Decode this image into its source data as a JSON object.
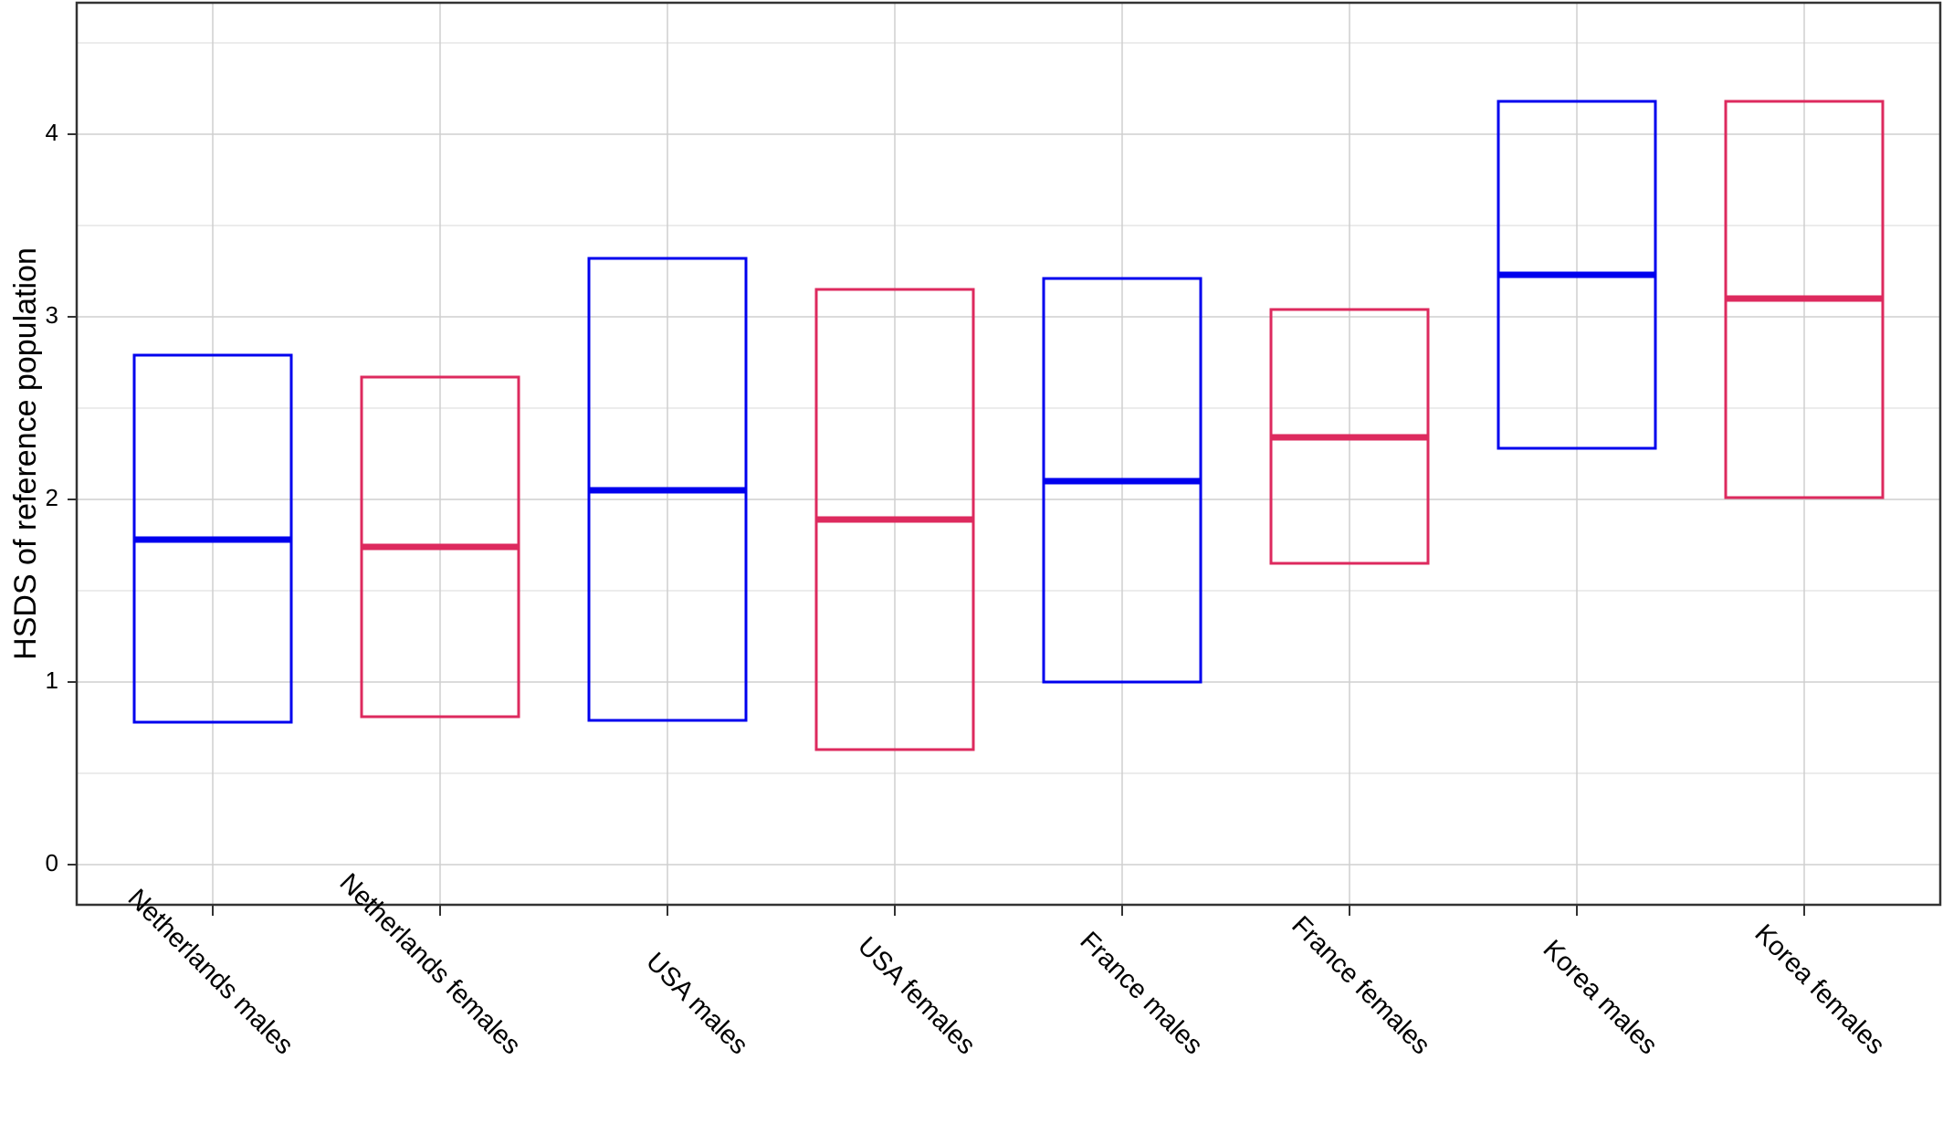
{
  "chart_data": {
    "type": "box",
    "title": "",
    "xlabel": "",
    "ylabel": "HSDS of reference population",
    "ylim": [
      -0.2,
      4.7
    ],
    "yticks": [
      0,
      1,
      2,
      3,
      4
    ],
    "grid": true,
    "legend": "none",
    "categories": [
      "Netherlands males",
      "Netherlands females",
      "USA males",
      "USA females",
      "France males",
      "France females",
      "Korea males",
      "Korea females"
    ],
    "colors": [
      "#0000ee",
      "#dd2a5e",
      "#0000ee",
      "#dd2a5e",
      "#0000ee",
      "#dd2a5e",
      "#0000ee",
      "#dd2a5e"
    ],
    "boxes": [
      {
        "low": 0.78,
        "mid": 1.78,
        "high": 2.79
      },
      {
        "low": 0.81,
        "mid": 1.74,
        "high": 2.67
      },
      {
        "low": 0.79,
        "mid": 2.05,
        "high": 3.32
      },
      {
        "low": 0.63,
        "mid": 1.89,
        "high": 3.15
      },
      {
        "low": 1.0,
        "mid": 2.1,
        "high": 3.21
      },
      {
        "low": 1.65,
        "mid": 2.34,
        "high": 3.04
      },
      {
        "low": 2.28,
        "mid": 3.23,
        "high": 4.18
      },
      {
        "low": 2.01,
        "mid": 3.1,
        "high": 4.18
      }
    ]
  }
}
